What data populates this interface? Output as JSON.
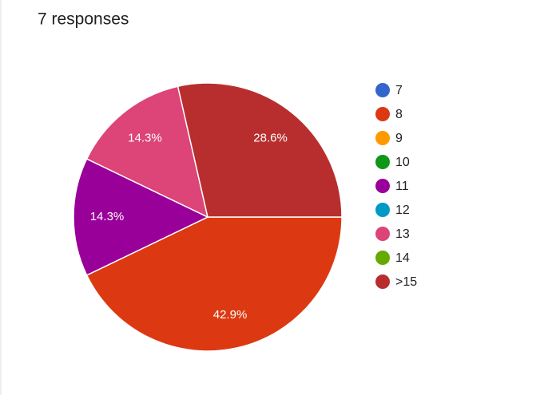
{
  "chart_data": {
    "type": "pie",
    "title": "7 responses",
    "categories": [
      "7",
      "8",
      "9",
      "10",
      "11",
      "12",
      "13",
      "14",
      ">15"
    ],
    "values": [
      0,
      42.9,
      0,
      0,
      14.3,
      0,
      14.3,
      0,
      28.6
    ],
    "value_labels": [
      null,
      "42.9%",
      null,
      null,
      "14.3%",
      null,
      "14.3%",
      null,
      "28.6%"
    ],
    "colors": [
      "#3366cc",
      "#dc3912",
      "#ff9900",
      "#109618",
      "#990099",
      "#0099c6",
      "#dd4477",
      "#66aa00",
      "#b82e2e"
    ],
    "legend": "right"
  }
}
